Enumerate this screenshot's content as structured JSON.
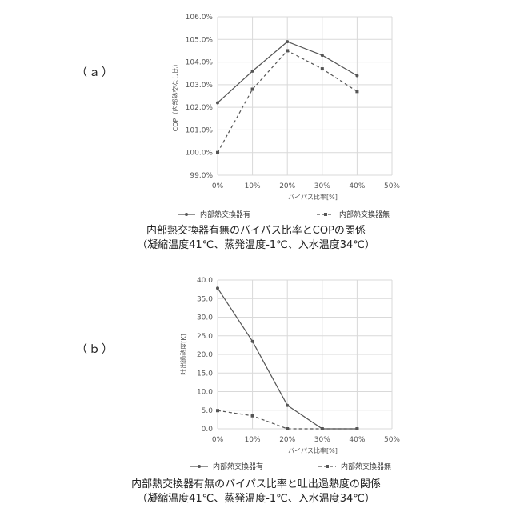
{
  "panels": [
    {
      "label": "（ａ）",
      "caption_line1": "内部熱交換器有無のバイパス比率とCOPの関係",
      "caption_line2": "（凝縮温度41℃、蒸発温度-1℃、入水温度34℃）"
    },
    {
      "label": "（ｂ）",
      "caption_line1": "内部熱交換器有無のバイパス比率と吐出過熱度の関係",
      "caption_line2": "（凝縮温度41℃、蒸発温度-1℃、入水温度34℃）"
    }
  ],
  "chart_data": [
    {
      "type": "line",
      "xlabel": "バイパス比率[%]",
      "ylabel": "COP（内部熱交なし比）",
      "categories": [
        "0%",
        "10%",
        "20%",
        "30%",
        "40%",
        "50%"
      ],
      "x": [
        0,
        10,
        20,
        30,
        40
      ],
      "xlim": [
        0,
        50
      ],
      "ylim": [
        99.0,
        106.0
      ],
      "yticks": [
        "99.0%",
        "100.0%",
        "101.0%",
        "102.0%",
        "103.0%",
        "104.0%",
        "105.0%",
        "106.0%"
      ],
      "grid": true,
      "legend_position": "bottom",
      "series": [
        {
          "name": "内部熱交換器有",
          "values": [
            102.2,
            103.6,
            104.9,
            104.3,
            103.4
          ],
          "style": "solid",
          "color": "#555555"
        },
        {
          "name": "内部熱交換器無",
          "values": [
            100.0,
            102.8,
            104.5,
            103.7,
            102.7
          ],
          "style": "dashed",
          "color": "#555555"
        }
      ]
    },
    {
      "type": "line",
      "xlabel": "バイパス比率[%]",
      "ylabel": "吐出過熱度[K]",
      "categories": [
        "0%",
        "10%",
        "20%",
        "30%",
        "40%",
        "50%"
      ],
      "x": [
        0,
        10,
        20,
        30,
        40
      ],
      "xlim": [
        0,
        50
      ],
      "ylim": [
        0,
        40
      ],
      "yticks": [
        "0.0",
        "5.0",
        "10.0",
        "15.0",
        "20.0",
        "25.0",
        "30.0",
        "35.0",
        "40.0"
      ],
      "grid": true,
      "legend_position": "bottom",
      "series": [
        {
          "name": "内部熱交換器有",
          "values": [
            37.8,
            23.5,
            6.3,
            0.0,
            0.0
          ],
          "style": "solid",
          "color": "#555555"
        },
        {
          "name": "内部熱交換器無",
          "values": [
            4.9,
            3.5,
            0.0,
            0.0,
            0.0
          ],
          "style": "dashed",
          "color": "#555555"
        }
      ]
    }
  ]
}
